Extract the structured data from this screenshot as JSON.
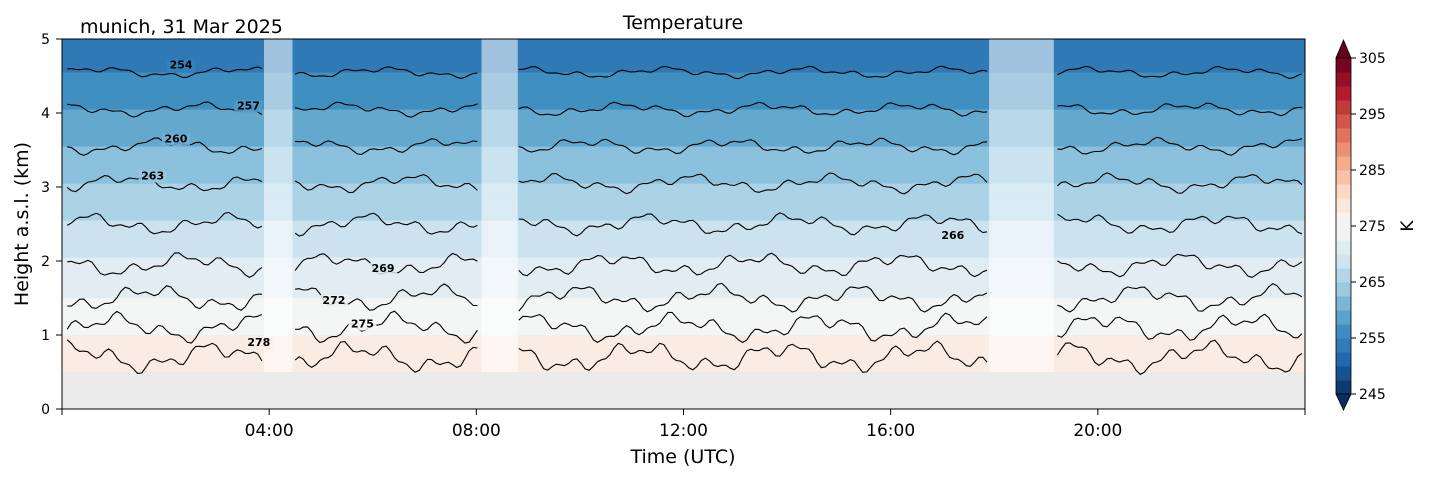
{
  "header": {
    "location_date": "munich, 31 Mar 2025",
    "title": "Temperature"
  },
  "chart_data": {
    "type": "heatmap",
    "title": "Temperature",
    "xlabel": "Time (UTC)",
    "ylabel": "Height a.s.l. (km)",
    "x_range_hours": [
      0,
      24
    ],
    "x_tick_labels": [
      "04:00",
      "08:00",
      "12:00",
      "16:00",
      "20:00"
    ],
    "x_tick_hours": [
      4,
      8,
      12,
      16,
      20
    ],
    "y_range_km": [
      0,
      5
    ],
    "y_ticks": [
      0,
      1,
      2,
      3,
      4,
      5
    ],
    "y_tick_labels": [
      "0",
      "1",
      "2",
      "3",
      "4",
      "5"
    ],
    "ground_level_km": 0.5,
    "colorbar": {
      "label": "K",
      "vmin": 245,
      "vmax": 305,
      "ticks": [
        245,
        255,
        265,
        275,
        285,
        295,
        305
      ],
      "tick_labels": [
        "245",
        "255",
        "265",
        "275",
        "285",
        "295",
        "305"
      ],
      "palette": [
        "#053061",
        "#2166ac",
        "#4393c3",
        "#92c5de",
        "#d1e5f0",
        "#f7f7f7",
        "#fddbc7",
        "#f4a582",
        "#d6604d",
        "#b2182b",
        "#67001f"
      ]
    },
    "temperature_profile": {
      "heights_km": [
        0.5,
        1.0,
        1.5,
        2.0,
        2.5,
        3.0,
        3.5,
        4.0,
        4.5,
        5.0
      ],
      "temperatures_K": [
        278.5,
        276.0,
        273.0,
        270.2,
        267.2,
        264.2,
        261.2,
        258.3,
        255.3,
        252.3
      ]
    },
    "contours": [
      {
        "level": 254,
        "mean_height_km": 4.55
      },
      {
        "level": 257,
        "mean_height_km": 4.05
      },
      {
        "level": 260,
        "mean_height_km": 3.55
      },
      {
        "level": 263,
        "mean_height_km": 3.05
      },
      {
        "level": 266,
        "mean_height_km": 2.5
      },
      {
        "level": 269,
        "mean_height_km": 1.95
      },
      {
        "level": 272,
        "mean_height_km": 1.5
      },
      {
        "level": 275,
        "mean_height_km": 1.1
      },
      {
        "level": 278,
        "mean_height_km": 0.7
      }
    ],
    "contour_labels": [
      {
        "text": "254",
        "hour": 2.3,
        "km": 4.6
      },
      {
        "text": "257",
        "hour": 3.6,
        "km": 4.05
      },
      {
        "text": "260",
        "hour": 2.2,
        "km": 3.6
      },
      {
        "text": "263",
        "hour": 1.75,
        "km": 3.1
      },
      {
        "text": "266",
        "hour": 17.2,
        "km": 2.3
      },
      {
        "text": "269",
        "hour": 6.2,
        "km": 1.85
      },
      {
        "text": "272",
        "hour": 5.25,
        "km": 1.42
      },
      {
        "text": "275",
        "hour": 5.8,
        "km": 1.1
      },
      {
        "text": "278",
        "hour": 3.8,
        "km": 0.85
      }
    ],
    "missing_data_periods_hours": [
      [
        3.9,
        4.45
      ],
      [
        8.1,
        8.8
      ],
      [
        17.9,
        19.15
      ]
    ],
    "ground_color": "#ebebeb",
    "missing_overlay_color": "#ffffff",
    "contour_color": "#000000"
  }
}
